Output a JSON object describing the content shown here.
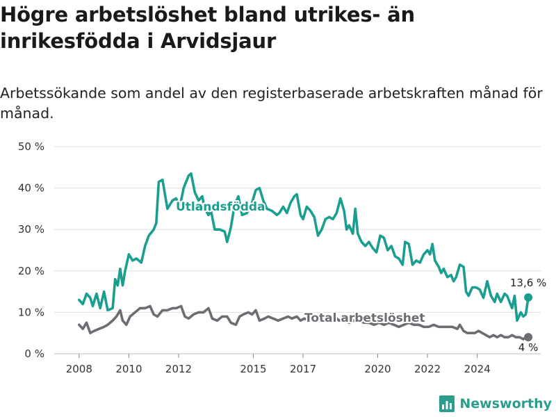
{
  "title": "Högre arbetslöshet bland utrikes- än inrikesfödda i Arvidsjaur",
  "subtitle": "Arbetssökande som andel av den registerbaserade arbetskraften månad för månad.",
  "brand": "Newsworthy",
  "colors": {
    "foreign": "#1a9e8f",
    "total": "#6e6c73",
    "grid": "#dddddd",
    "brand": "#2a9d8f"
  },
  "chart_data": {
    "type": "line",
    "xlabel": "",
    "ylabel": "",
    "ylim": [
      0,
      50
    ],
    "y_ticks": [
      "0 %",
      "10 %",
      "20 %",
      "30 %",
      "40 %",
      "50 %"
    ],
    "x_ticks": [
      "2008",
      "2010",
      "2012",
      "2015",
      "2017",
      "2020",
      "2022",
      "2024"
    ],
    "grid": true,
    "series": [
      {
        "name": "Utlandsfödda",
        "end_label": "13,6 %",
        "points": [
          [
            2008.0,
            13
          ],
          [
            2008.15,
            12
          ],
          [
            2008.3,
            14.5
          ],
          [
            2008.45,
            13.5
          ],
          [
            2008.55,
            11.5
          ],
          [
            2008.7,
            14.5
          ],
          [
            2008.85,
            11
          ],
          [
            2009.0,
            15
          ],
          [
            2009.15,
            10.5
          ],
          [
            2009.35,
            11
          ],
          [
            2009.45,
            18
          ],
          [
            2009.55,
            16.5
          ],
          [
            2009.65,
            20.5
          ],
          [
            2009.75,
            16.5
          ],
          [
            2009.85,
            20
          ],
          [
            2010.0,
            24
          ],
          [
            2010.15,
            22.5
          ],
          [
            2010.3,
            23
          ],
          [
            2010.5,
            22
          ],
          [
            2010.65,
            26
          ],
          [
            2010.8,
            28.5
          ],
          [
            2011.0,
            30
          ],
          [
            2011.1,
            31.5
          ],
          [
            2011.2,
            41.5
          ],
          [
            2011.35,
            42
          ],
          [
            2011.55,
            35
          ],
          [
            2011.75,
            37
          ],
          [
            2011.9,
            37.5
          ],
          [
            2012.05,
            35.5
          ],
          [
            2012.2,
            40
          ],
          [
            2012.4,
            43
          ],
          [
            2012.5,
            43.5
          ],
          [
            2012.65,
            39
          ],
          [
            2012.8,
            37
          ],
          [
            2012.95,
            38
          ],
          [
            2013.05,
            35
          ],
          [
            2013.2,
            33.5
          ],
          [
            2013.3,
            34.5
          ],
          [
            2013.45,
            30
          ],
          [
            2013.65,
            30
          ],
          [
            2013.85,
            29.5
          ],
          [
            2013.95,
            27
          ],
          [
            2014.1,
            30.5
          ],
          [
            2014.25,
            36
          ],
          [
            2014.4,
            38
          ],
          [
            2014.55,
            33.5
          ],
          [
            2014.75,
            34
          ],
          [
            2014.95,
            36.5
          ],
          [
            2015.1,
            39.5
          ],
          [
            2015.25,
            40
          ],
          [
            2015.4,
            37
          ],
          [
            2015.55,
            35
          ],
          [
            2015.75,
            34.5
          ],
          [
            2015.95,
            33.5
          ],
          [
            2016.05,
            34
          ],
          [
            2016.2,
            35.5
          ],
          [
            2016.35,
            34
          ],
          [
            2016.5,
            36.5
          ],
          [
            2016.65,
            38
          ],
          [
            2016.75,
            38.5
          ],
          [
            2016.9,
            33.5
          ],
          [
            2017.0,
            32.5
          ],
          [
            2017.15,
            35.5
          ],
          [
            2017.3,
            34.5
          ],
          [
            2017.45,
            33
          ],
          [
            2017.6,
            28.5
          ],
          [
            2017.75,
            30
          ],
          [
            2017.9,
            32.5
          ],
          [
            2018.05,
            33
          ],
          [
            2018.2,
            32.5
          ],
          [
            2018.35,
            34
          ],
          [
            2018.5,
            37.5
          ],
          [
            2018.65,
            34.5
          ],
          [
            2018.75,
            30
          ],
          [
            2018.85,
            31
          ],
          [
            2019.0,
            29
          ],
          [
            2019.1,
            35
          ],
          [
            2019.2,
            29
          ],
          [
            2019.35,
            27
          ],
          [
            2019.5,
            26
          ],
          [
            2019.65,
            27
          ],
          [
            2019.8,
            25.5
          ],
          [
            2019.95,
            24.5
          ],
          [
            2020.1,
            28.5
          ],
          [
            2020.25,
            28
          ],
          [
            2020.4,
            25
          ],
          [
            2020.55,
            26
          ],
          [
            2020.7,
            23.5
          ],
          [
            2020.85,
            23
          ],
          [
            2021.0,
            21.5
          ],
          [
            2021.1,
            27
          ],
          [
            2021.25,
            26.5
          ],
          [
            2021.4,
            21.5
          ],
          [
            2021.55,
            22.5
          ],
          [
            2021.7,
            22
          ],
          [
            2021.85,
            24
          ],
          [
            2022.0,
            25
          ],
          [
            2022.1,
            24
          ],
          [
            2022.2,
            26.5
          ],
          [
            2022.3,
            22.5
          ],
          [
            2022.45,
            21
          ],
          [
            2022.55,
            19.5
          ],
          [
            2022.65,
            20.5
          ],
          [
            2022.8,
            18.5
          ],
          [
            2022.95,
            19
          ],
          [
            2023.05,
            17.5
          ],
          [
            2023.15,
            18.5
          ],
          [
            2023.3,
            21.5
          ],
          [
            2023.45,
            21
          ],
          [
            2023.55,
            15
          ],
          [
            2023.65,
            14
          ],
          [
            2023.8,
            16
          ],
          [
            2023.95,
            16
          ],
          [
            2024.1,
            15.5
          ],
          [
            2024.25,
            13.5
          ],
          [
            2024.4,
            17.5
          ],
          [
            2024.55,
            14
          ],
          [
            2024.7,
            12.5
          ],
          [
            2024.8,
            14.5
          ],
          [
            2024.95,
            12.5
          ],
          [
            2025.1,
            14.5
          ],
          [
            2025.2,
            14
          ],
          [
            2025.3,
            12.5
          ],
          [
            2025.4,
            11
          ],
          [
            2025.5,
            14
          ],
          [
            2025.6,
            8
          ],
          [
            2025.75,
            10
          ],
          [
            2025.85,
            9
          ],
          [
            2025.95,
            9.5
          ],
          [
            2026.05,
            13.6
          ]
        ]
      },
      {
        "name": "Total arbetslöshet",
        "end_label": "4 %",
        "points": [
          [
            2008.0,
            7
          ],
          [
            2008.15,
            6
          ],
          [
            2008.3,
            7.5
          ],
          [
            2008.45,
            5
          ],
          [
            2008.6,
            5.5
          ],
          [
            2008.8,
            6
          ],
          [
            2009.0,
            6.5
          ],
          [
            2009.15,
            7
          ],
          [
            2009.35,
            8
          ],
          [
            2009.5,
            9
          ],
          [
            2009.65,
            10.5
          ],
          [
            2009.75,
            8
          ],
          [
            2009.9,
            7
          ],
          [
            2010.05,
            9
          ],
          [
            2010.25,
            10
          ],
          [
            2010.45,
            11
          ],
          [
            2010.65,
            11
          ],
          [
            2010.85,
            11.5
          ],
          [
            2011.0,
            9.5
          ],
          [
            2011.15,
            9
          ],
          [
            2011.35,
            10.5
          ],
          [
            2011.55,
            10.5
          ],
          [
            2011.75,
            11
          ],
          [
            2011.9,
            11
          ],
          [
            2012.1,
            11.5
          ],
          [
            2012.25,
            9
          ],
          [
            2012.4,
            8.5
          ],
          [
            2012.6,
            9.5
          ],
          [
            2012.8,
            10
          ],
          [
            2013.0,
            10
          ],
          [
            2013.2,
            11
          ],
          [
            2013.35,
            8.5
          ],
          [
            2013.55,
            8
          ],
          [
            2013.75,
            9
          ],
          [
            2013.95,
            9
          ],
          [
            2014.1,
            7.5
          ],
          [
            2014.3,
            7
          ],
          [
            2014.45,
            9
          ],
          [
            2014.6,
            9.5
          ],
          [
            2014.8,
            10
          ],
          [
            2014.95,
            9.5
          ],
          [
            2015.1,
            10.5
          ],
          [
            2015.25,
            8
          ],
          [
            2015.45,
            8.5
          ],
          [
            2015.6,
            9
          ],
          [
            2015.8,
            8.5
          ],
          [
            2016.0,
            8
          ],
          [
            2016.2,
            8.5
          ],
          [
            2016.4,
            9
          ],
          [
            2016.55,
            8.5
          ],
          [
            2016.75,
            9
          ],
          [
            2016.9,
            8
          ],
          [
            2017.05,
            8.5
          ],
          [
            2017.25,
            8
          ],
          [
            2017.45,
            8.5
          ],
          [
            2017.65,
            8
          ],
          [
            2017.85,
            8.5
          ],
          [
            2018.05,
            8.5
          ],
          [
            2018.25,
            9
          ],
          [
            2018.45,
            8
          ],
          [
            2018.65,
            8.5
          ],
          [
            2018.85,
            7.5
          ],
          [
            2019.05,
            8
          ],
          [
            2019.25,
            8
          ],
          [
            2019.45,
            7.5
          ],
          [
            2019.65,
            7.5
          ],
          [
            2019.85,
            7
          ],
          [
            2020.05,
            7.5
          ],
          [
            2020.25,
            7
          ],
          [
            2020.45,
            7.5
          ],
          [
            2020.65,
            7
          ],
          [
            2020.85,
            6.5
          ],
          [
            2021.05,
            7
          ],
          [
            2021.25,
            7.5
          ],
          [
            2021.45,
            7
          ],
          [
            2021.65,
            7
          ],
          [
            2021.85,
            6.5
          ],
          [
            2022.05,
            6.5
          ],
          [
            2022.25,
            7
          ],
          [
            2022.45,
            6.5
          ],
          [
            2022.6,
            6.5
          ],
          [
            2022.8,
            6.5
          ],
          [
            2023.0,
            6.5
          ],
          [
            2023.2,
            6
          ],
          [
            2023.3,
            7
          ],
          [
            2023.45,
            5.5
          ],
          [
            2023.6,
            5
          ],
          [
            2023.75,
            5
          ],
          [
            2023.9,
            5
          ],
          [
            2024.05,
            5.5
          ],
          [
            2024.2,
            5
          ],
          [
            2024.35,
            4.5
          ],
          [
            2024.5,
            4
          ],
          [
            2024.65,
            4.5
          ],
          [
            2024.8,
            4
          ],
          [
            2024.95,
            4.5
          ],
          [
            2025.1,
            4
          ],
          [
            2025.25,
            4
          ],
          [
            2025.4,
            4.5
          ],
          [
            2025.55,
            4
          ],
          [
            2025.7,
            4
          ],
          [
            2025.85,
            3.5
          ],
          [
            2025.95,
            4
          ],
          [
            2026.05,
            4
          ]
        ]
      }
    ]
  }
}
